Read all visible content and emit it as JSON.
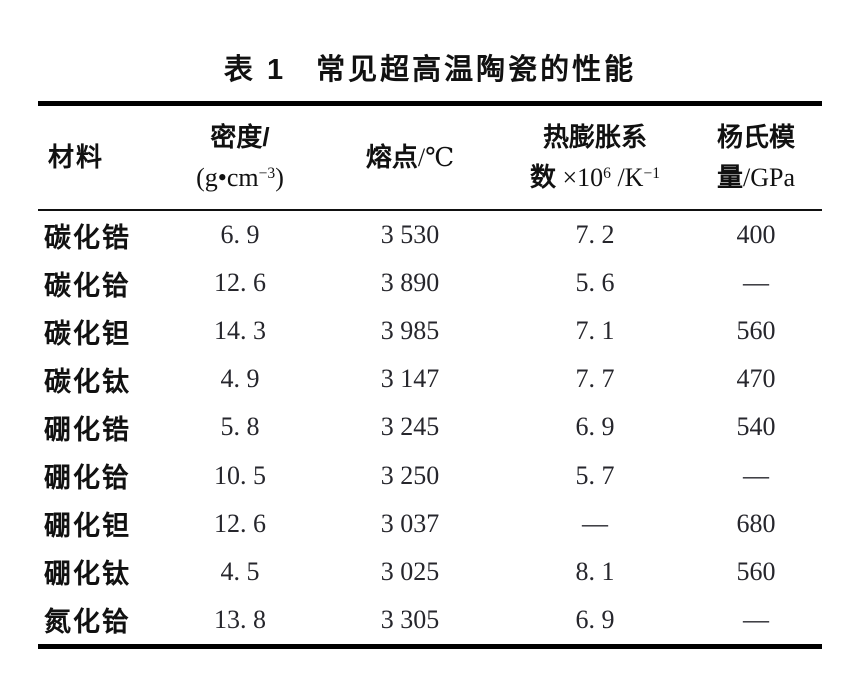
{
  "title": {
    "label": "表 1",
    "text": "常见超高温陶瓷的性能"
  },
  "table": {
    "header": {
      "material": "材料",
      "density_line1": "密度/",
      "density_unit_pre": "(g•cm",
      "density_unit_sup": "−3",
      "density_unit_post": ")",
      "melting_cn": "熔点",
      "melting_unit": "/℃",
      "cte_line1": "热膨胀系",
      "cte_line2_cn": "数",
      "cte_times": " ×10",
      "cte_sup1": "6",
      "cte_per_k": " /K",
      "cte_sup2": "−1",
      "youngs_line1": "杨氏模",
      "youngs_line2_cn": "量",
      "youngs_unit": "/GPa"
    },
    "rows": [
      {
        "material": "碳化锆",
        "density": "6. 9",
        "melting": "3 530",
        "cte": "7. 2",
        "youngs": "400"
      },
      {
        "material": "碳化铪",
        "density": "12. 6",
        "melting": "3 890",
        "cte": "5. 6",
        "youngs": "—"
      },
      {
        "material": "碳化钽",
        "density": "14. 3",
        "melting": "3 985",
        "cte": "7. 1",
        "youngs": "560"
      },
      {
        "material": "碳化钛",
        "density": "4. 9",
        "melting": "3 147",
        "cte": "7. 7",
        "youngs": "470"
      },
      {
        "material": "硼化锆",
        "density": "5. 8",
        "melting": "3 245",
        "cte": "6. 9",
        "youngs": "540"
      },
      {
        "material": "硼化铪",
        "density": "10. 5",
        "melting": "3 250",
        "cte": "5. 7",
        "youngs": "—"
      },
      {
        "material": "硼化钽",
        "density": "12. 6",
        "melting": "3 037",
        "cte": "—",
        "youngs": "680"
      },
      {
        "material": "硼化钛",
        "density": "4. 5",
        "melting": "3 025",
        "cte": "8. 1",
        "youngs": "560"
      },
      {
        "material": "氮化铪",
        "density": "13. 8",
        "melting": "3 305",
        "cte": "6. 9",
        "youngs": "—"
      }
    ]
  },
  "colors": {
    "background": "#ffffff",
    "rule": "#000000",
    "chinese_text": "#111111",
    "number_text": "#26262c"
  }
}
